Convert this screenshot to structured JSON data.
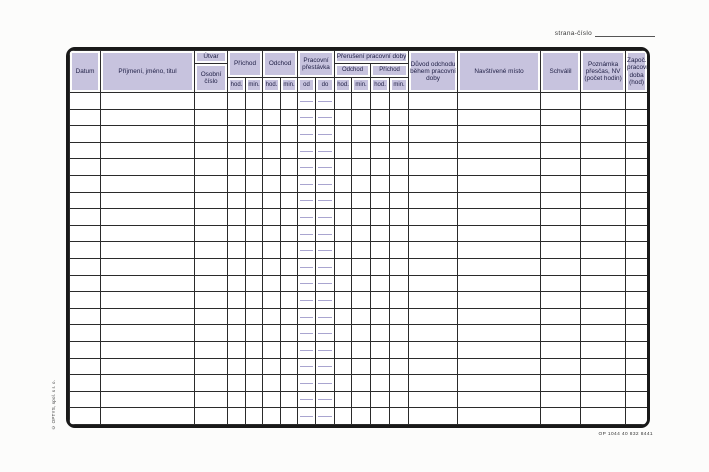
{
  "page": {
    "strana_label": "strana-číslo",
    "form_code": "OP 1044 40 832 8441",
    "imprint": "© OPTYS, spol. s r. o."
  },
  "table": {
    "row_count": 20,
    "headers": {
      "datum": "Datum",
      "jmeno": "Příjmení, jméno, titul",
      "utvar": "Útvar",
      "osobni_cislo": "Osobní číslo",
      "prichod": "Příchod",
      "odchod": "Odchod",
      "prac_prestavka": "Pracovní přestávka",
      "preruseni": "Přerušení pracovní doby",
      "preruseni_odchod": "Odchod",
      "preruseni_prichod": "Příchod",
      "hod": "hod.",
      "min": "min.",
      "od": "od",
      "do": "do",
      "duvod": "Důvod odchodu během pracovní doby",
      "navstivene_misto": "Navštívené místo",
      "schvalil": "Schválil",
      "poznamka": "Poznámka přesčas, NV (počet hodin)",
      "zapoc": "Započ. pracovní doba (hod)"
    },
    "colors": {
      "header_fill": "#c7c3de",
      "grid_line": "#2b2b2b",
      "outer_border": "#191919",
      "break_divider_line": "#a9a5d0"
    }
  }
}
